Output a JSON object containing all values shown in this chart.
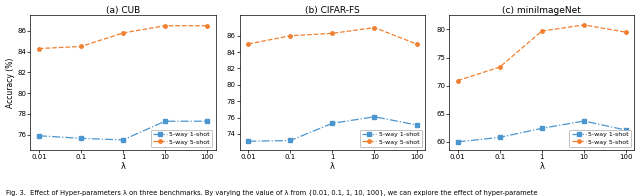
{
  "x_values": [
    0.01,
    0.1,
    1,
    10,
    100
  ],
  "x_labels": [
    "0.01",
    "0.1",
    "1",
    "10",
    "100"
  ],
  "plots": [
    {
      "title": "(a) CUB",
      "one_shot": [
        75.9,
        75.65,
        75.5,
        77.3,
        77.3
      ],
      "five_shot": [
        84.3,
        84.5,
        85.8,
        86.5,
        86.5
      ],
      "ylim": [
        74.5,
        87.5
      ],
      "yticks": [
        76,
        78,
        80,
        82,
        84,
        86
      ]
    },
    {
      "title": "(b) CIFAR-FS",
      "one_shot": [
        73.1,
        73.2,
        75.3,
        76.1,
        75.1
      ],
      "five_shot": [
        85.0,
        86.0,
        86.3,
        87.0,
        85.0
      ],
      "ylim": [
        72.0,
        88.5
      ],
      "yticks": [
        74,
        76,
        78,
        80,
        82,
        84,
        86
      ]
    },
    {
      "title": "(c) miniImageNet",
      "one_shot": [
        60.0,
        60.8,
        62.4,
        63.7,
        62.1
      ],
      "five_shot": [
        70.9,
        73.3,
        79.7,
        80.8,
        79.5
      ],
      "ylim": [
        58.5,
        82.5
      ],
      "yticks": [
        60,
        65,
        70,
        75,
        80
      ]
    }
  ],
  "color_1shot": "#4c96d0",
  "color_5shot": "#f08030",
  "xlabel": "λ",
  "ylabel": "Accuracy (%)",
  "legend_1shot": "5-way 1-shot",
  "legend_5shot": "5-way 5-shot",
  "caption": "Fig. 3.  Effect of Hyper-parameters λ on three benchmarks. By varying the value of λ from {0.01, 0.1, 1, 10, 100}, we can explore the effect of hyper-paramete"
}
